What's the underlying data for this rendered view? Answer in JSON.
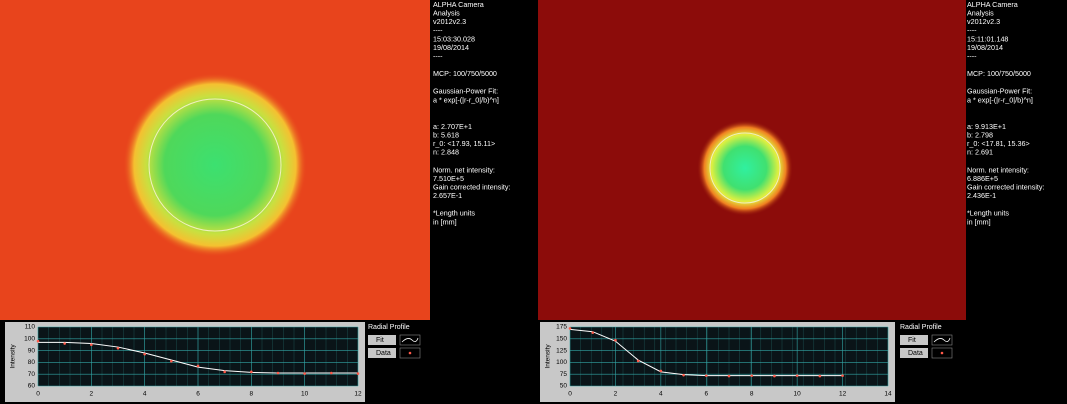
{
  "panels": [
    {
      "info": [
        [
          "ALPHA Camera",
          "Analysis",
          "v2012v2.3",
          "----",
          "15:03:30.028",
          "19/08/2014",
          "----"
        ],
        [
          "MCP: 100/750/5000"
        ],
        [
          "Gaussian-Power Fit:",
          "a * exp[-(|r-r_0|/b)^n]"
        ],
        [
          "a: 2.707E+1",
          "b: 5.618",
          "r_0: <17.93, 15.11>",
          "n: 2.848"
        ],
        [
          "Norm. net intensity:",
          "7.510E+5",
          "Gain corrected intensity:",
          "2.657E-1"
        ],
        [
          "*Length units",
          "in [mm]"
        ]
      ]
    },
    {
      "info": [
        [
          "ALPHA Camera",
          "Analysis",
          "v2012v2.3",
          "----",
          "15:11:01.148",
          "19/08/2014",
          "----"
        ],
        [
          "MCP: 100/750/5000"
        ],
        [
          "Gaussian-Power Fit:",
          "a * exp[-(|r-r_0|/b)^n]"
        ],
        [
          "a: 9.913E+1",
          "b: 2.798",
          "r_0: <17.81, 15.36>",
          "n: 2.691"
        ],
        [
          "Norm. net intensity:",
          "6.886E+5",
          "Gain corrected intensity:",
          "2.436E-1"
        ],
        [
          "*Length units",
          "in [mm]"
        ]
      ]
    }
  ],
  "chart_data": [
    {
      "type": "line",
      "title": "Radial Profile",
      "y_label": "Intensity",
      "x": [
        0,
        1,
        2,
        3,
        4,
        5,
        6,
        7,
        8,
        9,
        10,
        11,
        12
      ],
      "series": [
        {
          "name": "Fit",
          "color": "#ffffff",
          "values": [
            97,
            97,
            96,
            93,
            88,
            82,
            76,
            73,
            71.5,
            71,
            71,
            71,
            71
          ]
        },
        {
          "name": "Data",
          "color": "#ff5a4a",
          "values": [
            98,
            96,
            95,
            92,
            87,
            81,
            77,
            72,
            72,
            71,
            70.5,
            71,
            70.5
          ]
        }
      ],
      "xlim": [
        0,
        12
      ],
      "xticks": [
        0,
        2,
        4,
        6,
        8,
        10,
        12
      ],
      "ylim": [
        60,
        110
      ],
      "yticks": [
        60,
        70,
        80,
        90,
        100,
        110
      ],
      "grid": true
    },
    {
      "type": "line",
      "title": "Radial Profile",
      "y_label": "Intensity",
      "x": [
        0,
        1,
        2,
        3,
        4,
        5,
        6,
        7,
        8,
        9,
        10,
        11,
        12
      ],
      "series": [
        {
          "name": "Fit",
          "color": "#ffffff",
          "values": [
            170,
            165,
            145,
            105,
            80,
            74,
            72,
            72,
            72,
            72,
            72,
            72,
            72
          ]
        },
        {
          "name": "Data",
          "color": "#ff5a4a",
          "values": [
            172,
            163,
            147,
            103,
            82,
            73,
            72,
            71,
            72,
            71,
            72,
            71,
            72
          ]
        }
      ],
      "xlim": [
        0,
        14
      ],
      "xticks": [
        0,
        2,
        4,
        6,
        8,
        10,
        12,
        14
      ],
      "ylim": [
        50,
        175
      ],
      "yticks": [
        50,
        75,
        100,
        125,
        150,
        175
      ],
      "grid": true
    }
  ]
}
